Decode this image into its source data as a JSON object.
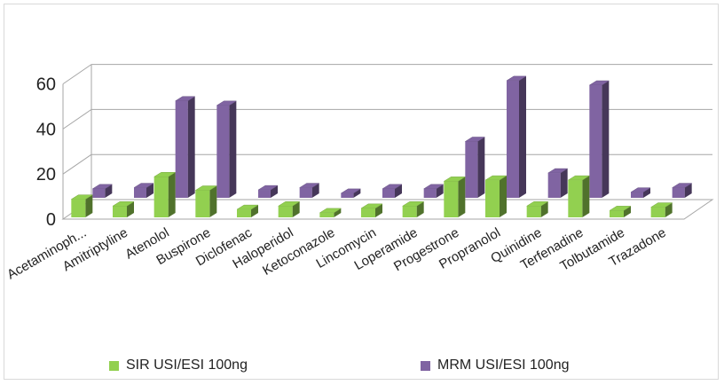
{
  "chart_data": {
    "type": "bar",
    "categories": [
      "Acetaminoph...",
      "Amitriptyline",
      "Atenolol",
      "Buspirone",
      "Diclofenac",
      "Haloperidol",
      "Ketoconazole",
      "Lincomycin",
      "Loperamide",
      "Progestrone",
      "Propranolol",
      "Quinidine",
      "Terfenadine",
      "Tolbutamide",
      "Trazadone"
    ],
    "series": [
      {
        "name": "SIR USI/ESI 100ng",
        "color": "#92d050",
        "values": [
          8,
          5,
          18,
          12,
          3.5,
          5,
          2,
          4,
          5,
          16,
          16.5,
          5,
          16.5,
          3,
          4.5
        ]
      },
      {
        "name": "MRM USI/ESI 100ng",
        "color": "#8064a2",
        "values": [
          4,
          4.5,
          43,
          41,
          3.5,
          4.5,
          2,
          4,
          4,
          25,
          52,
          11,
          50,
          2.5,
          4.5
        ]
      }
    ],
    "yticks": [
      "0",
      "20",
      "40",
      "60"
    ],
    "ylim": [
      0,
      60
    ],
    "grid": true,
    "legend_position": "bottom"
  }
}
